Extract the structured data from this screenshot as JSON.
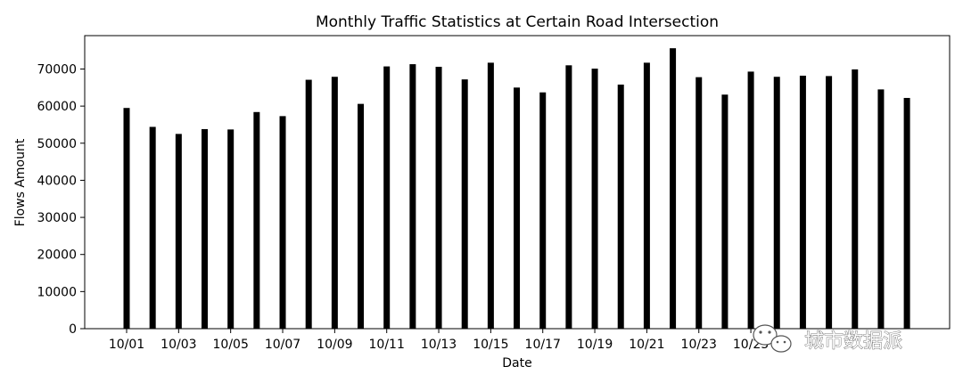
{
  "chart_data": {
    "type": "bar",
    "title": "Monthly Traffic Statistics at Certain Road Intersection",
    "xlabel": "Date",
    "ylabel": "Flows Amount",
    "ylim": [
      0,
      79000
    ],
    "yticks": [
      0,
      10000,
      20000,
      30000,
      40000,
      50000,
      60000,
      70000
    ],
    "xtick_labels": [
      "10/01",
      "10/03",
      "10/05",
      "10/07",
      "10/09",
      "10/11",
      "10/13",
      "10/15",
      "10/17",
      "10/19",
      "10/21",
      "10/23",
      "10/25"
    ],
    "categories": [
      "10/01",
      "10/02",
      "10/03",
      "10/04",
      "10/05",
      "10/06",
      "10/07",
      "10/08",
      "10/09",
      "10/10",
      "10/11",
      "10/12",
      "10/13",
      "10/14",
      "10/15",
      "10/16",
      "10/17",
      "10/18",
      "10/19",
      "10/20",
      "10/21",
      "10/22",
      "10/23",
      "10/24",
      "10/25",
      "10/26",
      "10/27",
      "10/28",
      "10/29",
      "10/30",
      "10/31"
    ],
    "values": [
      59500,
      54400,
      52500,
      53800,
      53700,
      58400,
      57300,
      67100,
      67900,
      60600,
      70700,
      71300,
      70600,
      67200,
      71700,
      65000,
      63700,
      71000,
      70100,
      65800,
      71700,
      75600,
      67800,
      63100,
      69300,
      67900,
      68200,
      68100,
      69900,
      64500,
      62200
    ],
    "bar_color": "#000000",
    "grid": false,
    "legend": "none"
  },
  "watermark": {
    "text": "城市数据派",
    "icon": "wechat-icon"
  }
}
